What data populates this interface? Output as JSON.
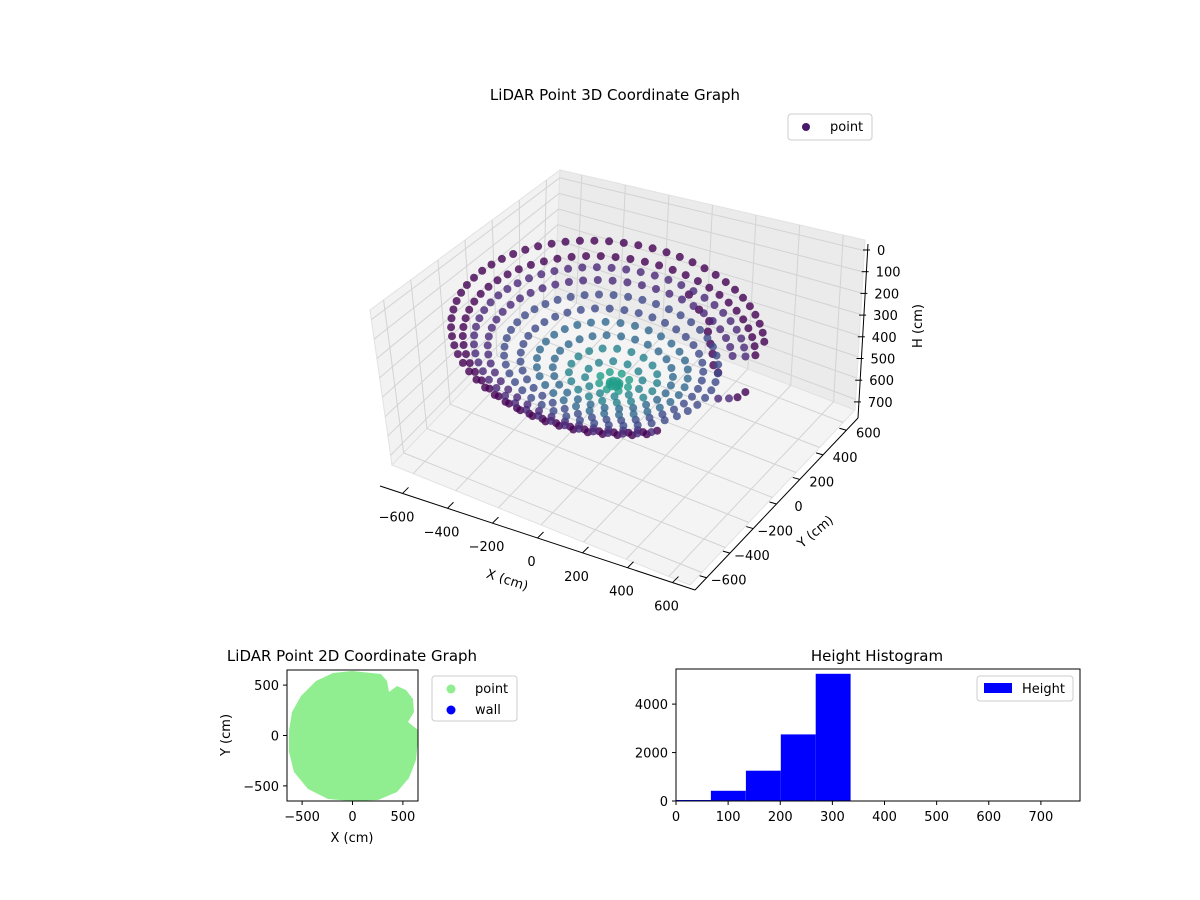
{
  "chart_data": [
    {
      "type": "scatter3d",
      "title": "LiDAR Point 3D Coordinate Graph",
      "xlabel": "X (cm)",
      "ylabel": "Y (cm)",
      "zlabel": "H (cm)",
      "xticks": [
        "−600",
        "−400",
        "−200",
        "0",
        "200",
        "400",
        "600"
      ],
      "yticks": [
        "600",
        "400",
        "200",
        "0",
        "−200",
        "−400",
        "−600"
      ],
      "zticks": [
        "0",
        "100",
        "200",
        "300",
        "400",
        "500",
        "600",
        "700"
      ],
      "xlim": [
        -650,
        650
      ],
      "ylim": [
        -650,
        650
      ],
      "zlim": [
        750,
        0
      ],
      "z_inverted": true,
      "legend": {
        "position": "top-right",
        "entries": [
          {
            "label": "point",
            "color": "#481a6c"
          }
        ]
      },
      "colormap": "viridis",
      "grid": true,
      "shape": "bowl-shaped point cloud: rim near H 0–100, center near H 300, radius about 600 cm"
    },
    {
      "type": "scatter",
      "title": "LiDAR Point 2D Coordinate Graph",
      "xlabel": "X (cm)",
      "ylabel": "Y (cm)",
      "xticks": [
        "−500",
        "0",
        "500"
      ],
      "yticks": [
        "500",
        "0",
        "−500"
      ],
      "xlim": [
        -650,
        650
      ],
      "ylim": [
        -650,
        650
      ],
      "legend": {
        "position": "outside-right",
        "entries": [
          {
            "label": "point",
            "color": "#90ee90"
          },
          {
            "label": "wall",
            "color": "#0000ff"
          }
        ]
      },
      "shape": "filled disc of radius about 630 cm with notches on the right side"
    },
    {
      "type": "bar",
      "title": "Height Histogram",
      "xticks": [
        "0",
        "100",
        "200",
        "300",
        "400",
        "500",
        "600",
        "700"
      ],
      "yticks": [
        "0",
        "2000",
        "4000"
      ],
      "xlim": [
        0,
        775
      ],
      "ylim": [
        0,
        5450
      ],
      "bin_edges": [
        0,
        67,
        134,
        201,
        268,
        335
      ],
      "values": [
        40,
        420,
        1250,
        2750,
        5250
      ],
      "color": "#0000ff",
      "legend": {
        "position": "top-right",
        "entries": [
          {
            "label": "Height",
            "color": "#0000ff"
          }
        ]
      }
    }
  ]
}
